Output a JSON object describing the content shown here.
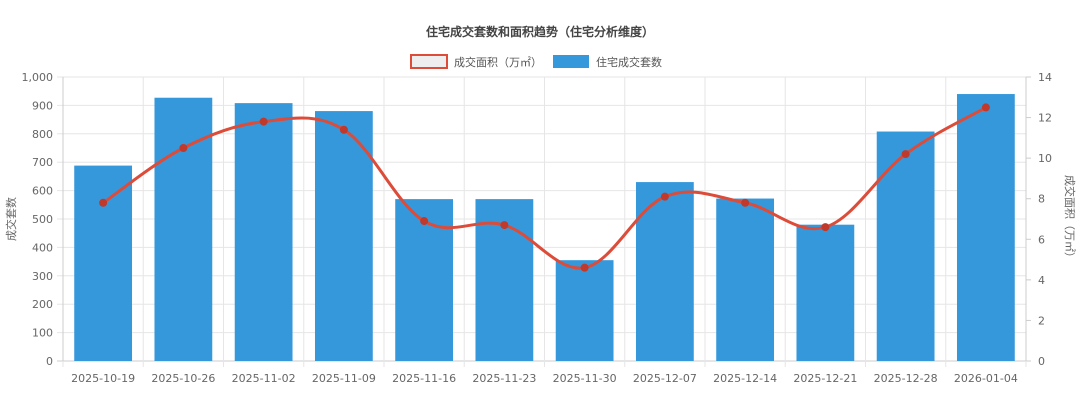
{
  "chart_data": {
    "type": "bar",
    "title": "住宅成交套数和面积趋势（住宅分析维度）",
    "categories": [
      "2025-10-19",
      "2025-10-26",
      "2025-11-02",
      "2025-11-09",
      "2025-11-16",
      "2025-11-23",
      "2025-11-30",
      "2025-12-07",
      "2025-12-14",
      "2025-12-21",
      "2025-12-28",
      "2026-01-04"
    ],
    "series": [
      {
        "name": "住宅成交套数",
        "type": "bar",
        "axis": "left",
        "color": "#3598db",
        "values": [
          688,
          927,
          908,
          880,
          570,
          570,
          355,
          630,
          572,
          480,
          808,
          940
        ]
      },
      {
        "name": "成交面积（万㎡）",
        "type": "line",
        "axis": "right",
        "color": "#dd4b39",
        "smooth": true,
        "values": [
          7.8,
          10.5,
          11.8,
          11.4,
          6.9,
          6.7,
          4.6,
          8.1,
          7.8,
          6.6,
          10.2,
          12.5
        ]
      }
    ],
    "ylabel_left": "成交套数",
    "ylabel_right": "成交面积（万㎡）",
    "ylim_left": [
      0,
      1000
    ],
    "ylim_right": [
      0,
      14
    ],
    "yticks_left": [
      "0",
      "100",
      "200",
      "300",
      "400",
      "500",
      "600",
      "700",
      "800",
      "900",
      "1,000"
    ],
    "yticks_right": [
      "0",
      "2",
      "4",
      "6",
      "8",
      "10",
      "12",
      "14"
    ],
    "grid": true,
    "legend_position": "top-center"
  }
}
